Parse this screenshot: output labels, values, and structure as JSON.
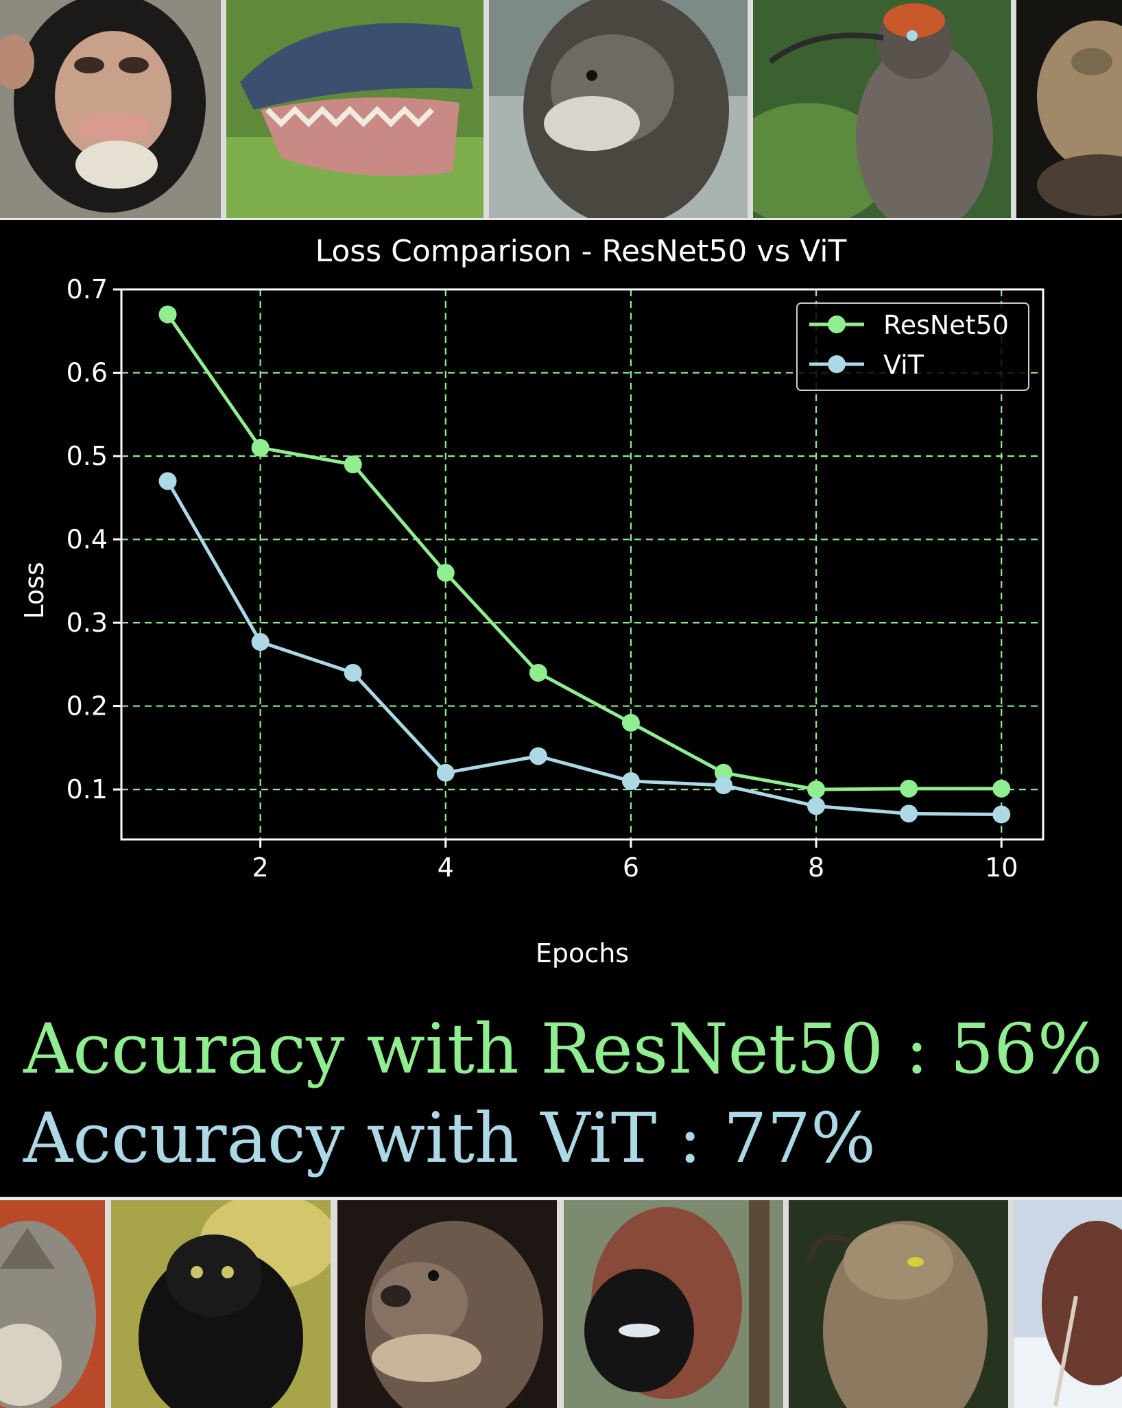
{
  "colors": {
    "background": "#000000",
    "resnet": "#90ee90",
    "vit": "#add8e6",
    "grid": "#90ee90",
    "axes": "#ffffff"
  },
  "top_photos": [
    {
      "name": "chimpanzee-photo"
    },
    {
      "name": "alligator-photo"
    },
    {
      "name": "walrus-photo"
    },
    {
      "name": "sicklebill-bird-photo"
    },
    {
      "name": "toad-photo"
    }
  ],
  "bottom_photos": [
    {
      "name": "wolf-photo"
    },
    {
      "name": "indri-lemur-photo"
    },
    {
      "name": "otter-photo"
    },
    {
      "name": "bird-of-paradise-photo"
    },
    {
      "name": "potoo-bird-photo"
    },
    {
      "name": "kiwi-bird-photo"
    }
  ],
  "chart_data": {
    "type": "line",
    "title": "Loss Comparison - ResNet50 vs ViT",
    "xlabel": "Epochs",
    "ylabel": "Loss",
    "x": [
      1,
      2,
      3,
      4,
      5,
      6,
      7,
      8,
      9,
      10
    ],
    "xlim": [
      0.5,
      10.45
    ],
    "ylim": [
      0.04,
      0.7
    ],
    "xticks": [
      2,
      4,
      6,
      8,
      10
    ],
    "yticks": [
      0.1,
      0.2,
      0.3,
      0.4,
      0.5,
      0.6,
      0.7
    ],
    "xtick_labels": [
      "2",
      "4",
      "6",
      "8",
      "10"
    ],
    "ytick_labels": [
      "0.1",
      "0.2",
      "0.3",
      "0.4",
      "0.5",
      "0.6",
      "0.7"
    ],
    "grid": true,
    "legend_position": "top-right",
    "series": [
      {
        "name": "ResNet50",
        "color": "#90ee90",
        "values": [
          0.67,
          0.51,
          0.49,
          0.36,
          0.24,
          0.18,
          0.12,
          0.1,
          0.101,
          0.101
        ]
      },
      {
        "name": "ViT",
        "color": "#add8e6",
        "values": [
          0.47,
          0.277,
          0.24,
          0.12,
          0.14,
          0.11,
          0.105,
          0.08,
          0.071,
          0.07
        ]
      }
    ]
  },
  "accuracy": {
    "resnet_text": "Accuracy with ResNet50 : 56%",
    "vit_text": "Accuracy with ViT : 77%"
  }
}
